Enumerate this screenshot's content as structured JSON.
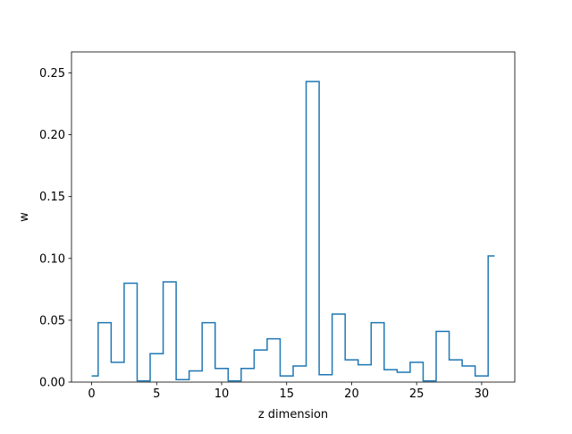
{
  "chart_data": {
    "type": "line",
    "drawstyle": "steps-mid",
    "title": "",
    "xlabel": "z dimension",
    "ylabel": "w",
    "xlim": [
      -1.55,
      32.55
    ],
    "ylim": [
      0,
      0.267
    ],
    "xticks": [
      0,
      5,
      10,
      15,
      20,
      25,
      30
    ],
    "xtick_labels": [
      "0",
      "5",
      "10",
      "15",
      "20",
      "25",
      "30"
    ],
    "yticks": [
      0.0,
      0.05,
      0.1,
      0.15,
      0.2,
      0.25
    ],
    "ytick_labels": [
      "0.00",
      "0.05",
      "0.10",
      "0.15",
      "0.20",
      "0.25"
    ],
    "grid": false,
    "legend": "none",
    "series_color": "#1f77b4",
    "x": [
      0,
      1,
      2,
      3,
      4,
      5,
      6,
      7,
      8,
      9,
      10,
      11,
      12,
      13,
      14,
      15,
      16,
      17,
      18,
      19,
      20,
      21,
      22,
      23,
      24,
      25,
      26,
      27,
      28,
      29,
      30,
      31
    ],
    "values": [
      0.005,
      0.048,
      0.016,
      0.08,
      0.001,
      0.023,
      0.081,
      0.002,
      0.009,
      0.048,
      0.011,
      0.001,
      0.011,
      0.026,
      0.035,
      0.005,
      0.013,
      0.243,
      0.006,
      0.055,
      0.018,
      0.014,
      0.048,
      0.01,
      0.008,
      0.016,
      0.001,
      0.041,
      0.018,
      0.013,
      0.005,
      0.102
    ]
  }
}
